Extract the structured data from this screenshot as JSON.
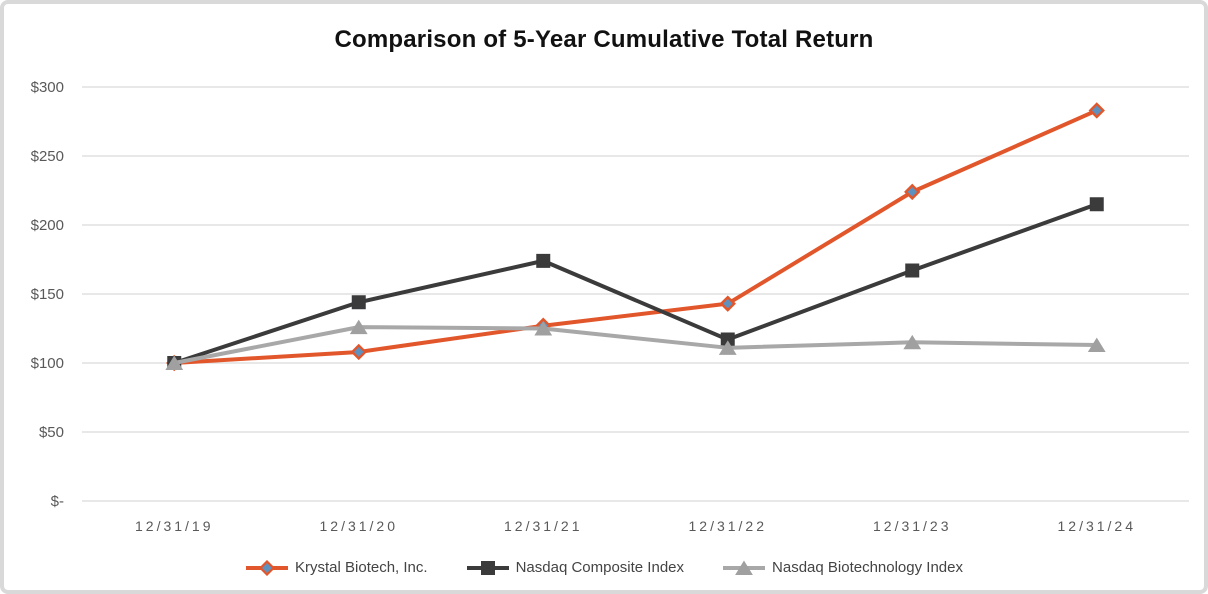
{
  "chart_data": {
    "type": "line",
    "title": "Comparison of 5-Year Cumulative Total Return",
    "categories": [
      "12/31/19",
      "12/31/20",
      "12/31/21",
      "12/31/22",
      "12/31/23",
      "12/31/24"
    ],
    "series": [
      {
        "name": "Krystal Biotech, Inc.",
        "marker": "diamond",
        "line_color": "#e2562b",
        "marker_fill": "#5f91be",
        "marker_stroke": "#e2562b",
        "values": [
          100,
          108,
          127,
          143,
          224,
          283
        ]
      },
      {
        "name": "Nasdaq Composite Index",
        "marker": "square",
        "line_color": "#3b3b3c",
        "marker_fill": "#3b3b3c",
        "marker_stroke": "#3b3b3c",
        "values": [
          100,
          144,
          174,
          117,
          167,
          215
        ]
      },
      {
        "name": "Nasdaq Biotechnology Index",
        "marker": "triangle",
        "line_color": "#a8a8a8",
        "marker_fill": "#a0a0a0",
        "marker_stroke": "#a0a0a0",
        "values": [
          100,
          126,
          125,
          111,
          115,
          113
        ]
      }
    ],
    "y_ticks": [
      "$-",
      "$50",
      "$100",
      "$150",
      "$200",
      "$250",
      "$300"
    ],
    "y_values": [
      0,
      50,
      100,
      150,
      200,
      250,
      300
    ],
    "ylim": [
      0,
      300
    ],
    "grid": true,
    "gridline_color": "#d9d9d9",
    "frame_border_color": "#d9d9d9",
    "legend_position": "bottom"
  }
}
